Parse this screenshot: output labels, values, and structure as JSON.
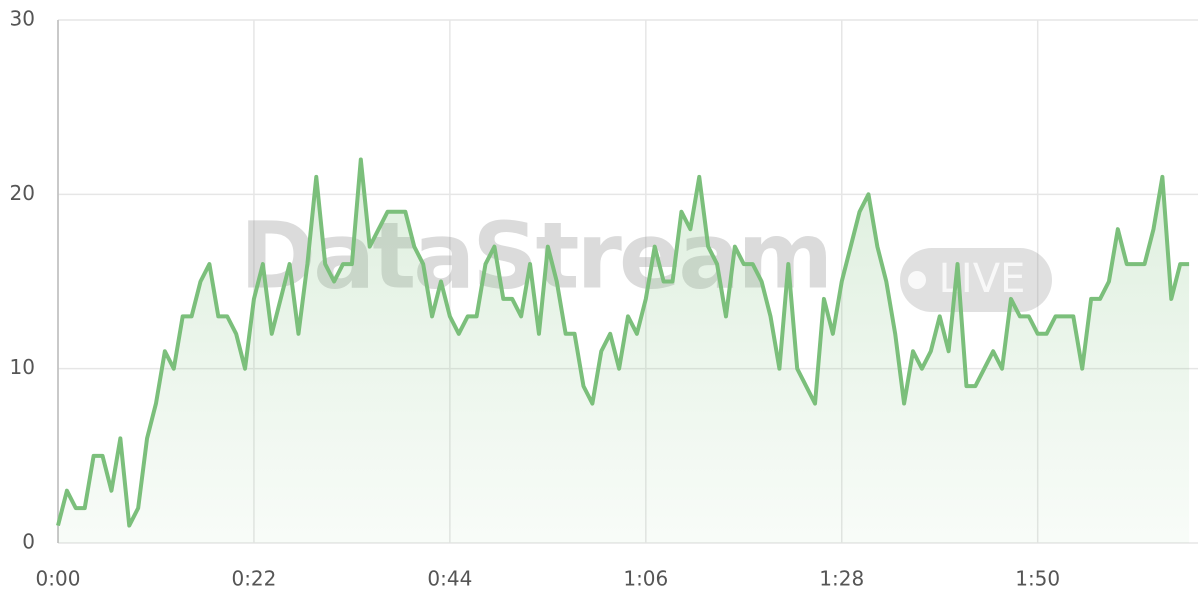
{
  "chart_data": {
    "type": "area",
    "watermark": {
      "text": "DataStream",
      "badge": "LIVE"
    },
    "x": [
      0,
      1,
      2,
      3,
      4,
      5,
      6,
      7,
      8,
      9,
      10,
      11,
      12,
      13,
      14,
      15,
      16,
      17,
      18,
      19,
      20,
      21,
      22,
      23,
      24,
      25,
      26,
      27,
      28,
      29,
      30,
      31,
      32,
      33,
      34,
      35,
      36,
      37,
      38,
      39,
      40,
      41,
      42,
      43,
      44,
      45,
      46,
      47,
      48,
      49,
      50,
      51,
      52,
      53,
      54,
      55,
      56,
      57,
      58,
      59,
      60,
      61,
      62,
      63,
      64,
      65,
      66,
      67,
      68,
      69,
      70,
      71,
      72,
      73,
      74,
      75,
      76,
      77,
      78,
      79,
      80,
      81,
      82,
      83,
      84,
      85,
      86,
      87,
      88,
      89,
      90,
      91,
      92,
      93,
      94,
      95,
      96,
      97,
      98,
      99,
      100,
      101,
      102,
      103,
      104,
      105,
      106,
      107,
      108,
      109,
      110,
      111,
      112,
      113,
      114,
      115,
      116,
      117,
      118,
      119,
      120,
      121,
      122,
      123,
      124,
      125,
      126,
      127
    ],
    "series": [
      {
        "color": "#7bbf7b",
        "values": [
          1,
          3,
          2,
          2,
          5,
          5,
          3,
          6,
          1,
          2,
          6,
          8,
          11,
          10,
          13,
          13,
          15,
          16,
          13,
          13,
          12,
          10,
          14,
          16,
          12,
          14,
          16,
          12,
          16,
          21,
          16,
          15,
          16,
          16,
          22,
          17,
          18,
          19,
          19,
          19,
          17,
          16,
          13,
          15,
          13,
          12,
          13,
          13,
          16,
          17,
          14,
          14,
          13,
          16,
          12,
          17,
          15,
          12,
          12,
          9,
          8,
          11,
          12,
          10,
          13,
          12,
          14,
          17,
          15,
          15,
          19,
          18,
          21,
          17,
          16,
          13,
          17,
          16,
          16,
          15,
          13,
          10,
          16,
          10,
          9,
          8,
          14,
          12,
          15,
          17,
          19,
          20,
          17,
          15,
          12,
          8,
          11,
          10,
          11,
          13,
          11,
          16,
          9,
          9,
          10,
          11,
          10,
          14,
          13,
          13,
          12,
          12,
          13,
          13,
          13,
          10,
          14,
          14,
          15,
          18,
          16,
          16,
          16,
          18,
          21,
          14,
          16,
          16
        ]
      }
    ],
    "xlim": [
      0,
      128
    ],
    "xticks": [
      {
        "value": 0,
        "label": "0:00"
      },
      {
        "value": 22,
        "label": "0:22"
      },
      {
        "value": 44,
        "label": "0:44"
      },
      {
        "value": 66,
        "label": "1:06"
      },
      {
        "value": 88,
        "label": "1:28"
      },
      {
        "value": 110,
        "label": "1:50"
      }
    ],
    "ylim": [
      0,
      30
    ],
    "yticks": [
      0,
      10,
      20,
      30
    ],
    "grid": true
  }
}
